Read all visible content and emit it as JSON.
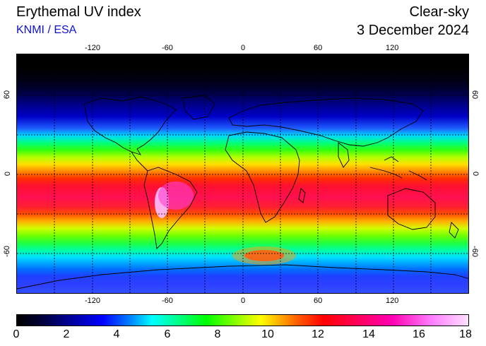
{
  "header": {
    "title": "Erythemal UV index",
    "source": "KNMI / ESA",
    "mode": "Clear-sky",
    "date": "3 December 2024"
  },
  "map": {
    "lon_ticks": [
      "-120",
      "-60",
      "0",
      "60",
      "120"
    ],
    "lat_ticks": [
      "60",
      "0",
      "-60"
    ],
    "projection": "equirectangular",
    "grid": "dashed, 30 degree"
  },
  "colorbar": {
    "labels": [
      "0",
      "2",
      "4",
      "6",
      "8",
      "10",
      "12",
      "14",
      "16",
      "18"
    ],
    "min": 0,
    "max": 18
  }
}
